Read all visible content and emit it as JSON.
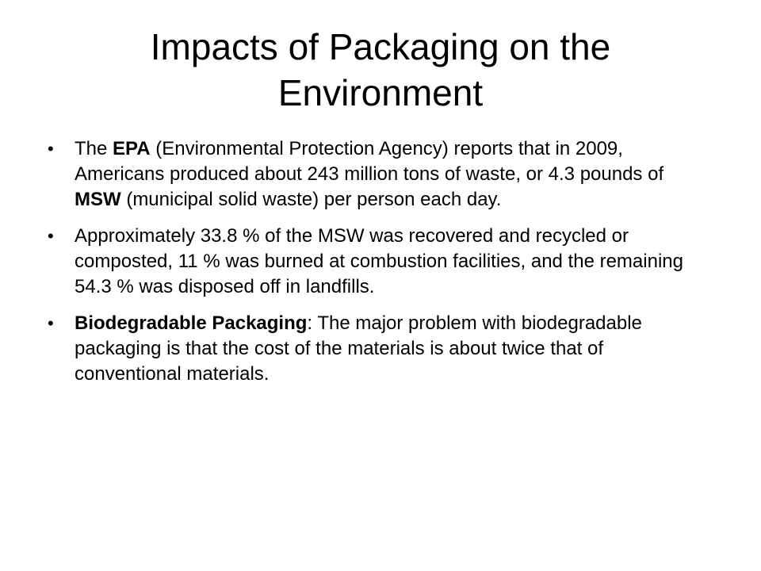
{
  "slide": {
    "title": "Impacts of Packaging on the Environment",
    "bullet_glyph": "•",
    "bullets": [
      {
        "parts": [
          {
            "text": "The ",
            "bold": false
          },
          {
            "text": "EPA",
            "bold": true
          },
          {
            "text": " (Environmental Protection Agency) reports that in 2009, Americans produced about 243 million tons of waste, or 4.3 pounds of ",
            "bold": false
          },
          {
            "text": "MSW",
            "bold": true
          },
          {
            "text": " (municipal solid waste) per person each day.",
            "bold": false
          }
        ]
      },
      {
        "parts": [
          {
            "text": "Approximately 33.8 % of the MSW was recovered and recycled or composted, 11 % was burned at combustion facilities, and the remaining 54.3 % was disposed off in landfills.",
            "bold": false
          }
        ]
      },
      {
        "parts": [
          {
            "text": "Biodegradable Packaging",
            "bold": true
          },
          {
            "text": ": The major problem with biodegradable packaging is that the cost of the materials is about twice that of conventional materials.",
            "bold": false
          }
        ]
      }
    ]
  }
}
